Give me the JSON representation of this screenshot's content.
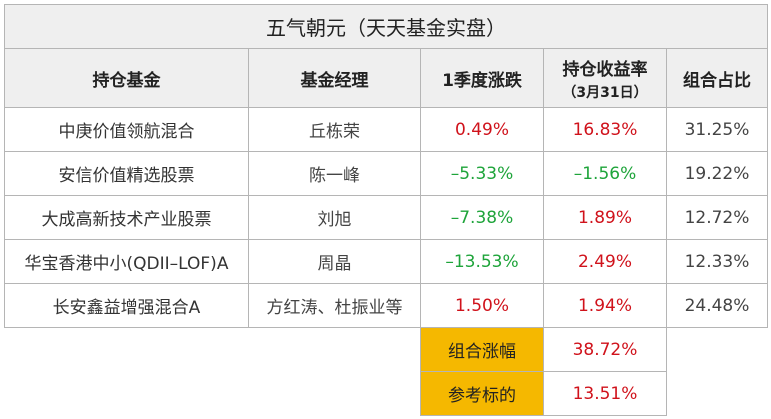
{
  "title": "五气朝元（天天基金实盘）",
  "headers": {
    "fund": "持仓基金",
    "manager": "基金经理",
    "q1_change": "1季度涨跌",
    "return": "持仓收益率",
    "return_sub": "（3月31日）",
    "weight": "组合占比"
  },
  "rows": [
    {
      "fund": "中庚价值领航混合",
      "manager": "丘栋荣",
      "q1_change": "0.49%",
      "q1_dir": "red",
      "return": "16.83%",
      "return_dir": "red",
      "weight": "31.25%"
    },
    {
      "fund": "安信价值精选股票",
      "manager": "陈一峰",
      "q1_change": "–5.33%",
      "q1_dir": "green",
      "return": "–1.56%",
      "return_dir": "green",
      "weight": "19.22%"
    },
    {
      "fund": "大成高新技术产业股票",
      "manager": "刘旭",
      "q1_change": "–7.38%",
      "q1_dir": "green",
      "return": "1.89%",
      "return_dir": "red",
      "weight": "12.72%"
    },
    {
      "fund": "华宝香港中小(QDII–LOF)A",
      "manager": "周晶",
      "q1_change": "–13.53%",
      "q1_dir": "green",
      "return": "2.49%",
      "return_dir": "red",
      "weight": "12.33%"
    },
    {
      "fund": "长安鑫益增强混合A",
      "manager": "方红涛、杜振业等",
      "q1_change": "1.50%",
      "q1_dir": "red",
      "return": "1.94%",
      "return_dir": "red",
      "weight": "24.48%"
    }
  ],
  "summary": [
    {
      "label": "组合涨幅",
      "value": "38.72%"
    },
    {
      "label": "参考标的",
      "value": "13.51%"
    }
  ],
  "colors": {
    "red": "#d0121b",
    "green": "#1ea43a",
    "gold": "#f5b800"
  }
}
